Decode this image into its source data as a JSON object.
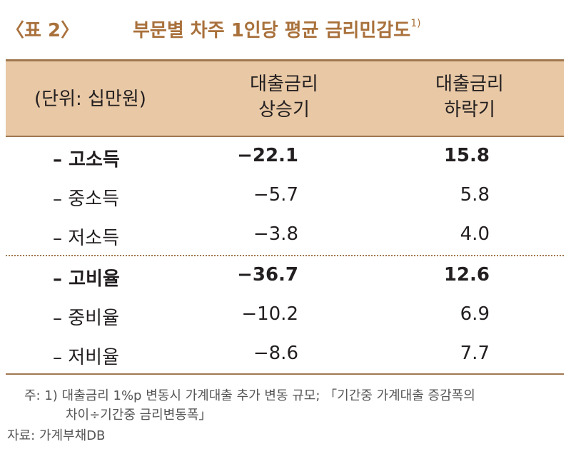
{
  "title": {
    "table_no": "〈표 2〉",
    "text": "부문별 차주 1인당 평균 금리민감도",
    "footnote_mark": "1)"
  },
  "header": {
    "unit": "(단위: 십만원)",
    "col1_line1": "대출금리",
    "col1_line2": "상승기",
    "col2_line1": "대출금리",
    "col2_line2": "하락기"
  },
  "rows": [
    {
      "label": "– 고소득",
      "rise": "−22.1",
      "fall": "15.8",
      "bold": true
    },
    {
      "label": "– 중소득",
      "rise": "−5.7",
      "fall": "5.8",
      "bold": false
    },
    {
      "label": "– 저소득",
      "rise": "−3.8",
      "fall": "4.0",
      "bold": false
    },
    {
      "label": "– 고비율",
      "rise": "−36.7",
      "fall": "12.6",
      "bold": true
    },
    {
      "label": "– 중비율",
      "rise": "−10.2",
      "fall": "6.9",
      "bold": false
    },
    {
      "label": "– 저비율",
      "rise": "−8.6",
      "fall": "7.7",
      "bold": false
    }
  ],
  "notes": {
    "note1_line1": "주: 1) 대출금리 1%p 변동시 가계대출 추가 변동 규모; 「기간중 가계대출 증감폭의",
    "note1_line2": "차이÷기간중 금리변동폭」",
    "source": "자료: 가계부채DB"
  }
}
